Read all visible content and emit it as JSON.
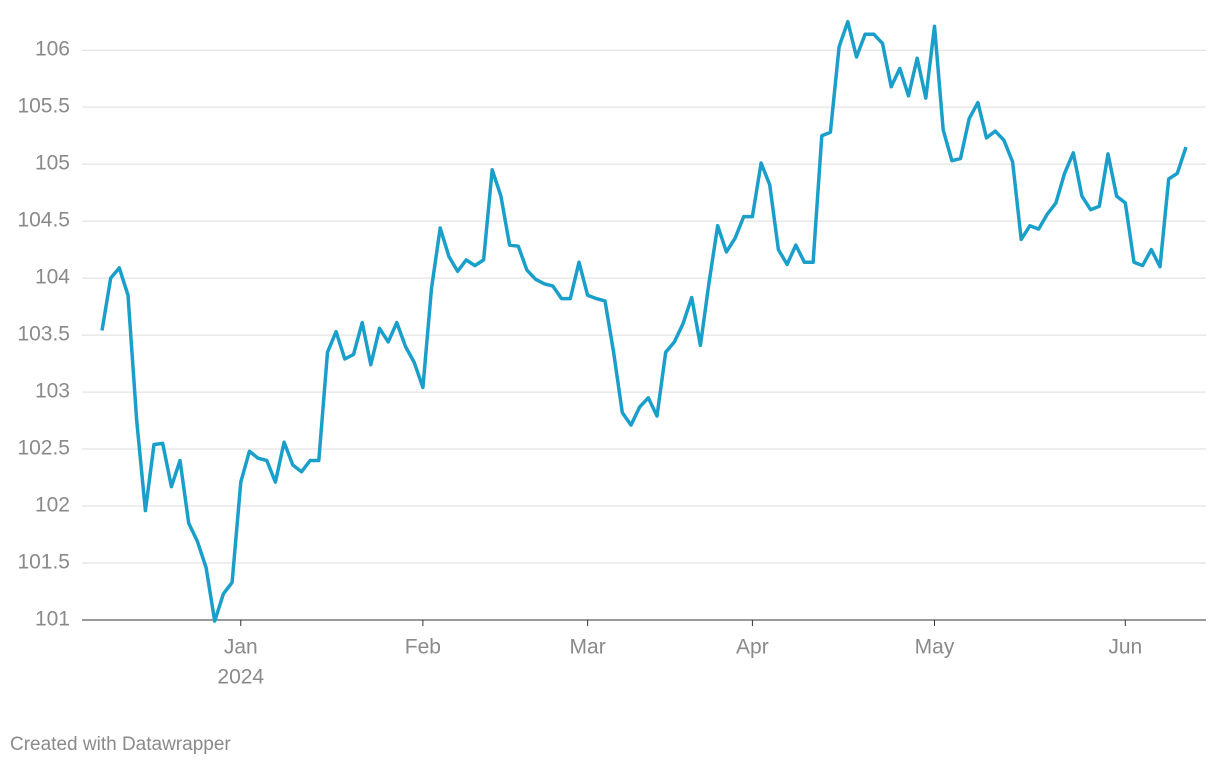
{
  "chart_data": {
    "type": "line",
    "categories": [
      null,
      null,
      null,
      null,
      null,
      null,
      null,
      null,
      null,
      null,
      null,
      null,
      null,
      null,
      null,
      null,
      "Jan",
      null,
      null,
      null,
      null,
      null,
      null,
      null,
      null,
      null,
      null,
      null,
      null,
      null,
      null,
      null,
      null,
      null,
      null,
      null,
      null,
      "Feb",
      null,
      null,
      null,
      null,
      null,
      null,
      null,
      null,
      null,
      null,
      null,
      null,
      null,
      null,
      null,
      null,
      null,
      null,
      "Mar",
      null,
      null,
      null,
      null,
      null,
      null,
      null,
      null,
      null,
      null,
      null,
      null,
      null,
      null,
      null,
      null,
      null,
      null,
      "Apr",
      null,
      null,
      null,
      null,
      null,
      null,
      null,
      null,
      null,
      null,
      null,
      null,
      null,
      null,
      null,
      null,
      null,
      null,
      null,
      null,
      "May",
      null,
      null,
      null,
      null,
      null,
      null,
      null,
      null,
      null,
      null,
      null,
      null,
      null,
      null,
      null,
      null,
      null,
      null,
      null,
      null,
      null,
      "Jun",
      null,
      null,
      null,
      null,
      null,
      null,
      null
    ],
    "year_label": "2024",
    "series": [
      {
        "color": "#1a9fcb",
        "values": [
          103.54,
          104.0,
          104.09,
          103.85,
          102.75,
          101.96,
          102.54,
          102.55,
          102.17,
          102.4,
          101.85,
          101.69,
          101.46,
          100.99,
          101.23,
          101.33,
          102.21,
          102.48,
          102.42,
          102.4,
          102.21,
          102.56,
          102.36,
          102.3,
          102.4,
          102.4,
          103.35,
          103.53,
          103.29,
          103.33,
          103.61,
          103.24,
          103.56,
          103.44,
          103.61,
          103.4,
          103.26,
          103.04,
          103.91,
          104.44,
          104.19,
          104.06,
          104.16,
          104.11,
          104.16,
          104.95,
          104.72,
          104.29,
          104.28,
          104.07,
          103.99,
          103.95,
          103.93,
          103.82,
          103.82,
          104.14,
          103.85,
          103.82,
          103.8,
          103.35,
          102.82,
          102.71,
          102.87,
          102.95,
          102.79,
          103.35,
          103.44,
          103.6,
          103.83,
          103.41,
          103.96,
          104.46,
          104.23,
          104.35,
          104.54,
          104.54,
          105.01,
          104.82,
          104.25,
          104.12,
          104.29,
          104.14,
          104.14,
          105.25,
          105.28,
          106.03,
          106.25,
          105.94,
          106.14,
          106.14,
          106.06,
          105.68,
          105.84,
          105.6,
          105.93,
          105.58,
          106.21,
          105.3,
          105.03,
          105.05,
          105.4,
          105.54,
          105.23,
          105.29,
          105.21,
          105.02,
          104.34,
          104.46,
          104.43,
          104.56,
          104.66,
          104.92,
          105.1,
          104.72,
          104.6,
          104.63,
          105.09,
          104.72,
          104.66,
          104.14,
          104.11,
          104.25,
          104.1,
          104.87,
          104.92,
          105.15
        ]
      }
    ],
    "ylim": [
      101,
      106.3
    ],
    "yticks": [
      101,
      101.5,
      102,
      102.5,
      103,
      103.5,
      104,
      104.5,
      105,
      105.5,
      106
    ],
    "grid": true,
    "footer": "Created with Datawrapper"
  }
}
